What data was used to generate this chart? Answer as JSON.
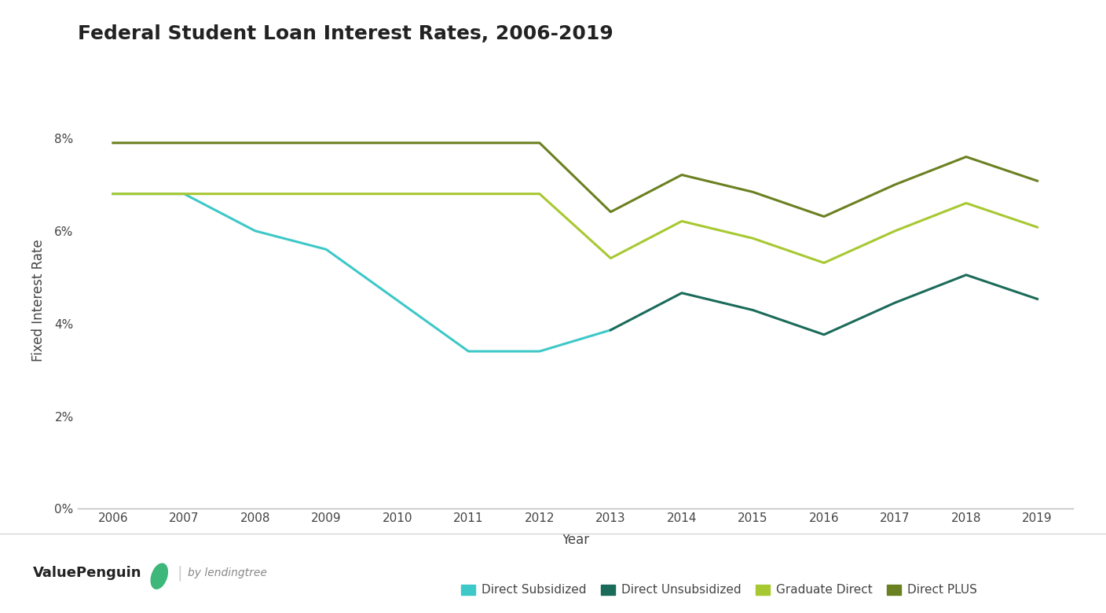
{
  "title": "Federal Student Loan Interest Rates, 2006-2019",
  "xlabel": "Year",
  "ylabel": "Fixed Interest Rate",
  "years": [
    2006,
    2007,
    2008,
    2009,
    2010,
    2011,
    2012,
    2013,
    2014,
    2015,
    2016,
    2017,
    2018,
    2019
  ],
  "direct_subsidized_years": [
    2006,
    2007,
    2008,
    2009,
    2010,
    2011,
    2012,
    2013
  ],
  "direct_subsidized_vals": [
    6.8,
    6.8,
    6.0,
    5.6,
    4.5,
    3.4,
    3.4,
    3.86
  ],
  "direct_unsubsidized_years": [
    2013,
    2014,
    2015,
    2016,
    2017,
    2018,
    2019
  ],
  "direct_unsubsidized_vals": [
    3.86,
    4.66,
    4.29,
    3.76,
    4.45,
    5.05,
    4.53
  ],
  "graduate_direct_years": [
    2006,
    2007,
    2008,
    2009,
    2010,
    2011,
    2012,
    2013,
    2014,
    2015,
    2016,
    2017,
    2018,
    2019
  ],
  "graduate_direct_vals": [
    6.8,
    6.8,
    6.8,
    6.8,
    6.8,
    6.8,
    6.8,
    5.41,
    6.21,
    5.84,
    5.31,
    6.0,
    6.6,
    6.08
  ],
  "direct_plus_years": [
    2006,
    2007,
    2008,
    2009,
    2010,
    2011,
    2012,
    2013,
    2014,
    2015,
    2016,
    2017,
    2018,
    2019
  ],
  "direct_plus_vals": [
    7.9,
    7.9,
    7.9,
    7.9,
    7.9,
    7.9,
    7.9,
    6.41,
    7.21,
    6.84,
    6.31,
    7.0,
    7.6,
    7.08
  ],
  "subsidized_color": "#3EC8C8",
  "unsubsidized_color": "#1B6B5A",
  "graduate_color": "#A8C832",
  "plus_color": "#6B8020",
  "background_color": "#ffffff",
  "ylim": [
    0,
    9
  ],
  "yticks": [
    0,
    2,
    4,
    6,
    8
  ],
  "ytick_labels": [
    "0%",
    "2%",
    "4%",
    "6%",
    "8%"
  ],
  "title_fontsize": 18,
  "axis_label_fontsize": 12,
  "tick_fontsize": 11,
  "legend_fontsize": 11,
  "line_width": 2.2,
  "legend_labels": [
    "Direct Subsidized",
    "Direct Unsubsidized",
    "Graduate Direct",
    "Direct PLUS"
  ]
}
